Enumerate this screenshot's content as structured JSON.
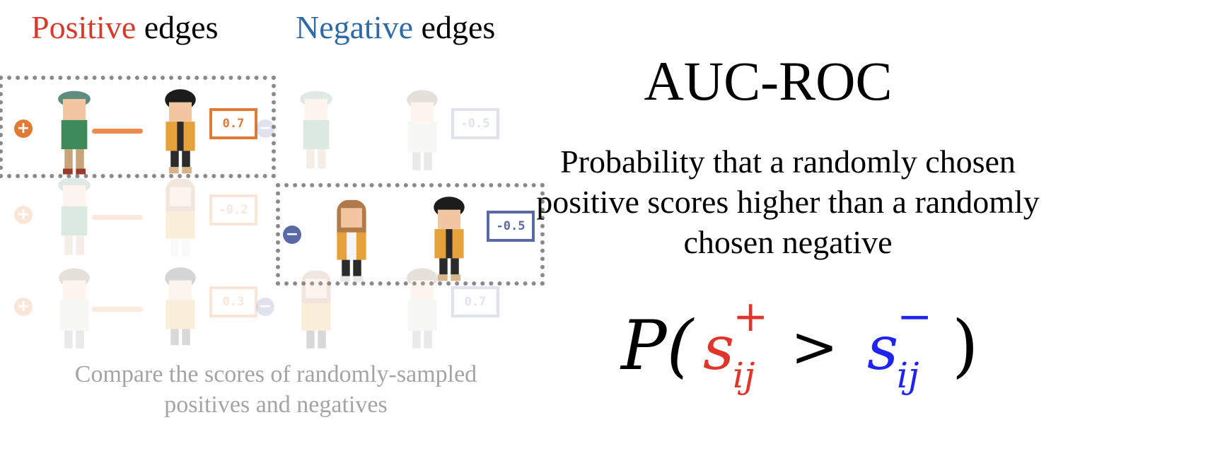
{
  "headings": {
    "positive": {
      "highlight": "Positive",
      "rest": " edges"
    },
    "negative": {
      "highlight": "Negative",
      "rest": " edges"
    }
  },
  "colors": {
    "positive_heading": "#d63a2b",
    "negative_heading": "#2e6aa8",
    "positive_accent": "#e07a34",
    "negative_accent": "#5a6aa6",
    "formula_positive": "#e0352b",
    "formula_negative": "#1f24f0",
    "caption": "#a4a4a4",
    "selection_border": "#8a8a8a"
  },
  "positive_edges": [
    {
      "sign": "+",
      "score": "0.7",
      "selected": true
    },
    {
      "sign": "+",
      "score": "-0.2",
      "selected": false
    },
    {
      "sign": "+",
      "score": "0.3",
      "selected": false
    }
  ],
  "negative_edges": [
    {
      "sign": "−",
      "score": "-0.5",
      "selected": false
    },
    {
      "sign": "−",
      "score": "-0.5",
      "selected": true
    },
    {
      "sign": "−",
      "score": "0.7",
      "selected": false
    }
  ],
  "caption": "Compare the scores of randomly-sampled positives and negatives",
  "title": "AUC-ROC",
  "definition": "Probability that a randomly chosen positive scores higher than a randomly chosen negative",
  "formula": {
    "prefix": "P(",
    "positive_var": "s",
    "positive_sup": "+",
    "positive_sub": "ij",
    "operator": ">",
    "negative_var": "s",
    "negative_sup": "−",
    "negative_sub": "ij",
    "suffix": ")"
  }
}
